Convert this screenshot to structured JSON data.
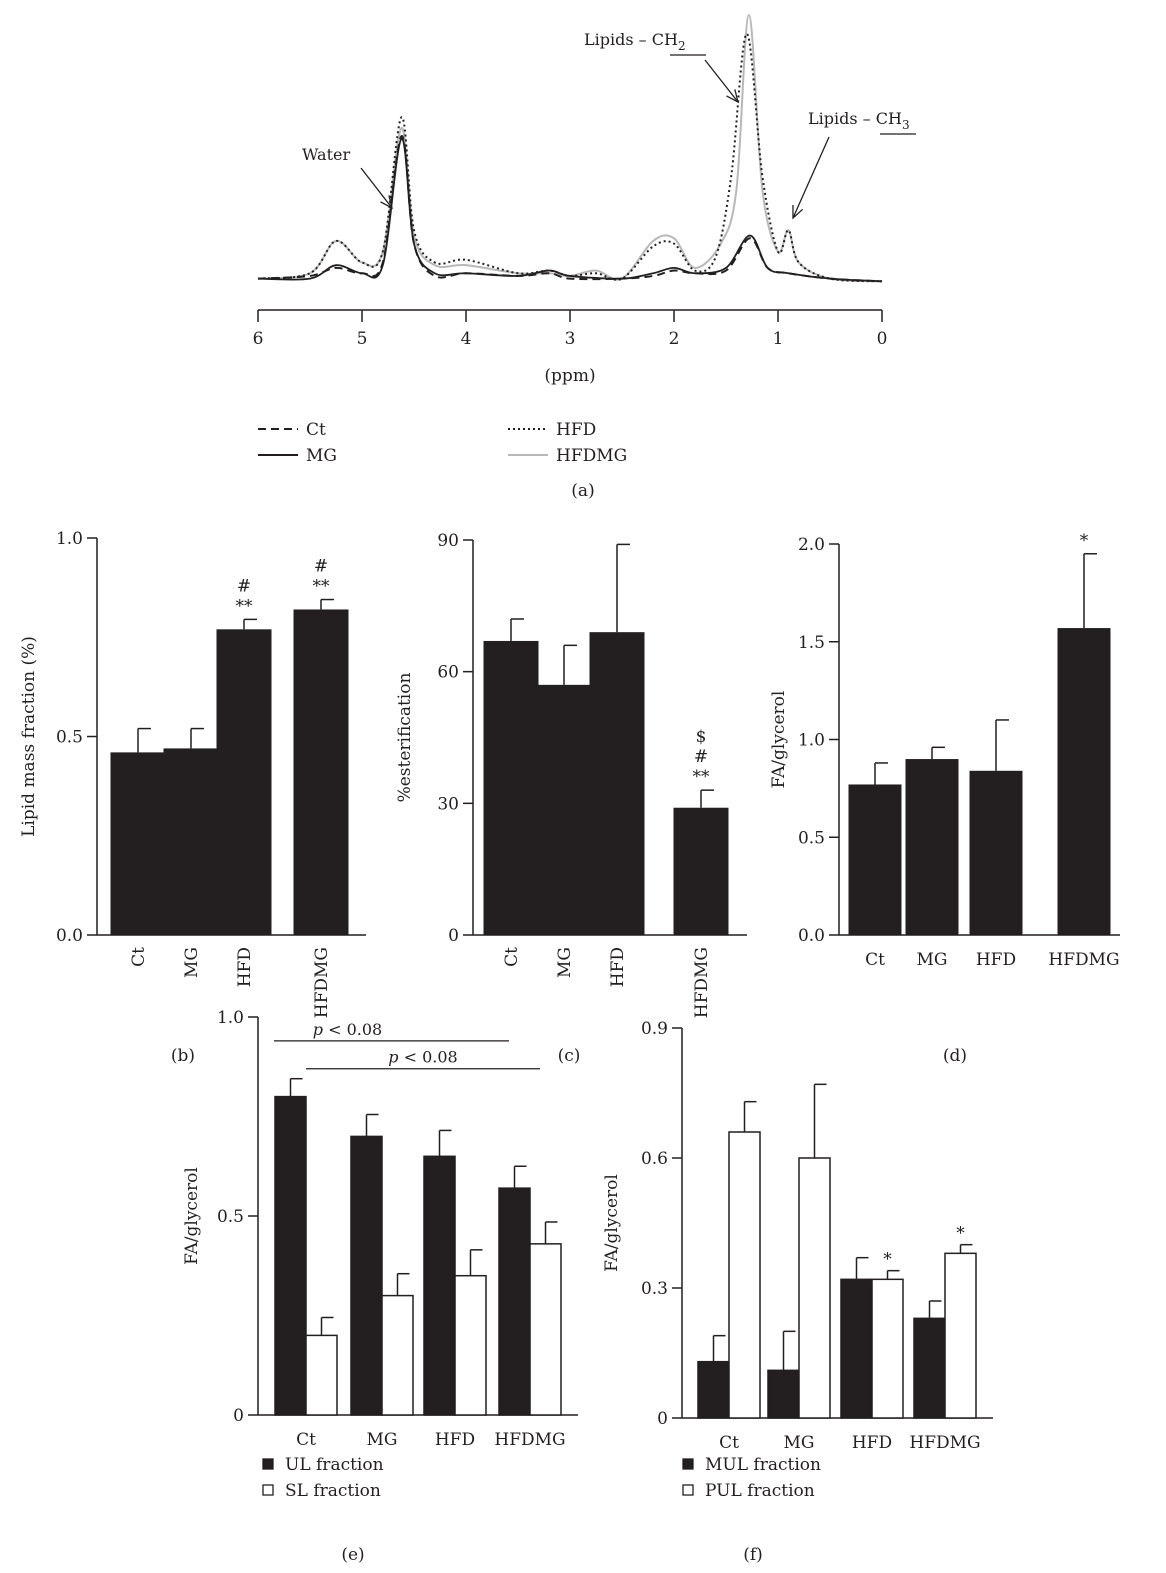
{
  "colors": {
    "dark": "#231f20",
    "light": "#b8b8b8",
    "white": "#ffffff"
  },
  "panel_labels": {
    "a": "(a)",
    "b": "(b)",
    "c": "(c)",
    "d": "(d)",
    "e": "(e)",
    "f": "(f)"
  },
  "chart_data": [
    {
      "id": "a",
      "type": "line",
      "xlabel": "(ppm)",
      "xlim": [
        6,
        0
      ],
      "x_ticks": [
        "6",
        "5",
        "4",
        "3",
        "2",
        "1",
        "0"
      ],
      "annotations": {
        "water": "Water",
        "ch2_prefix": "Lipids – ",
        "ch2_group": "CH",
        "ch2_sub": "2",
        "ch3_prefix": "Lipids – ",
        "ch3_group": "CH",
        "ch3_sub": "3"
      },
      "legend": [
        "Ct",
        "MG",
        "HFD",
        "HFDMG"
      ],
      "series": [
        {
          "name": "Ct",
          "style": "dashed",
          "color": "#231f20",
          "points": [
            [
              6,
              0.02
            ],
            [
              5.5,
              0.03
            ],
            [
              5.25,
              0.06
            ],
            [
              5.0,
              0.04
            ],
            [
              4.8,
              0.08
            ],
            [
              4.62,
              0.55
            ],
            [
              4.5,
              0.15
            ],
            [
              4.3,
              0.03
            ],
            [
              4.0,
              0.04
            ],
            [
              3.5,
              0.03
            ],
            [
              3.2,
              0.04
            ],
            [
              3.0,
              0.02
            ],
            [
              2.5,
              0.02
            ],
            [
              2.2,
              0.03
            ],
            [
              2.0,
              0.05
            ],
            [
              1.8,
              0.04
            ],
            [
              1.5,
              0.05
            ],
            [
              1.27,
              0.17
            ],
            [
              1.1,
              0.06
            ],
            [
              0.9,
              0.04
            ],
            [
              0.5,
              0.02
            ],
            [
              0,
              0.01
            ]
          ]
        },
        {
          "name": "MG",
          "style": "solid",
          "color": "#231f20",
          "points": [
            [
              6,
              0.02
            ],
            [
              5.5,
              0.02
            ],
            [
              5.25,
              0.07
            ],
            [
              5.0,
              0.04
            ],
            [
              4.8,
              0.07
            ],
            [
              4.62,
              0.54
            ],
            [
              4.5,
              0.15
            ],
            [
              4.3,
              0.04
            ],
            [
              4.0,
              0.04
            ],
            [
              3.5,
              0.03
            ],
            [
              3.2,
              0.05
            ],
            [
              3.0,
              0.03
            ],
            [
              2.5,
              0.02
            ],
            [
              2.2,
              0.04
            ],
            [
              2.0,
              0.06
            ],
            [
              1.8,
              0.04
            ],
            [
              1.5,
              0.06
            ],
            [
              1.27,
              0.18
            ],
            [
              1.1,
              0.06
            ],
            [
              0.9,
              0.04
            ],
            [
              0.5,
              0.02
            ],
            [
              0,
              0.01
            ]
          ]
        },
        {
          "name": "HFD",
          "style": "dotted",
          "color": "#231f20",
          "points": [
            [
              6,
              0.02
            ],
            [
              5.5,
              0.04
            ],
            [
              5.25,
              0.16
            ],
            [
              5.0,
              0.08
            ],
            [
              4.8,
              0.12
            ],
            [
              4.62,
              0.62
            ],
            [
              4.5,
              0.2
            ],
            [
              4.3,
              0.08
            ],
            [
              4.0,
              0.09
            ],
            [
              3.5,
              0.04
            ],
            [
              3.2,
              0.05
            ],
            [
              3.0,
              0.03
            ],
            [
              2.75,
              0.04
            ],
            [
              2.5,
              0.02
            ],
            [
              2.2,
              0.14
            ],
            [
              2.0,
              0.15
            ],
            [
              1.8,
              0.05
            ],
            [
              1.6,
              0.1
            ],
            [
              1.45,
              0.4
            ],
            [
              1.3,
              0.93
            ],
            [
              1.15,
              0.4
            ],
            [
              1.0,
              0.12
            ],
            [
              0.9,
              0.2
            ],
            [
              0.8,
              0.08
            ],
            [
              0.5,
              0.02
            ],
            [
              0,
              0.01
            ]
          ]
        },
        {
          "name": "HFDMG",
          "style": "solid",
          "color": "#b8b8b8",
          "points": [
            [
              6,
              0.02
            ],
            [
              5.5,
              0.04
            ],
            [
              5.25,
              0.16
            ],
            [
              5.0,
              0.08
            ],
            [
              4.8,
              0.12
            ],
            [
              4.62,
              0.58
            ],
            [
              4.5,
              0.18
            ],
            [
              4.3,
              0.07
            ],
            [
              4.0,
              0.07
            ],
            [
              3.5,
              0.04
            ],
            [
              3.2,
              0.04
            ],
            [
              3.0,
              0.03
            ],
            [
              2.75,
              0.05
            ],
            [
              2.5,
              0.02
            ],
            [
              2.2,
              0.16
            ],
            [
              2.0,
              0.17
            ],
            [
              1.8,
              0.06
            ],
            [
              1.55,
              0.15
            ],
            [
              1.4,
              0.35
            ],
            [
              1.28,
              1.0
            ],
            [
              1.15,
              0.35
            ],
            [
              1.0,
              0.12
            ],
            [
              0.9,
              0.2
            ],
            [
              0.8,
              0.08
            ],
            [
              0.5,
              0.02
            ],
            [
              0,
              0.01
            ]
          ]
        }
      ]
    },
    {
      "id": "b",
      "type": "bar",
      "ylabel": "Lipid mass fraction (%)",
      "ylim": [
        0,
        1.0
      ],
      "y_ticks": [
        "0.0",
        "0.5",
        "1.0"
      ],
      "categories": [
        "Ct",
        "MG",
        "HFD",
        "HFDMG"
      ],
      "values": [
        0.46,
        0.47,
        0.77,
        0.82
      ],
      "errors": [
        0.06,
        0.05,
        0.025,
        0.025
      ],
      "sig": [
        [],
        [],
        [
          "#",
          "**"
        ],
        [
          "#",
          "**"
        ]
      ]
    },
    {
      "id": "c",
      "type": "bar",
      "ylabel": "%esterification",
      "ylim": [
        0,
        90
      ],
      "y_ticks": [
        "0",
        "30",
        "60",
        "90"
      ],
      "categories": [
        "Ct",
        "MG",
        "HFD",
        "HFDMG"
      ],
      "values": [
        67,
        57,
        69,
        29
      ],
      "errors": [
        5,
        9,
        20,
        4
      ],
      "sig": [
        [],
        [],
        [],
        [
          "$",
          "#",
          "**"
        ]
      ]
    },
    {
      "id": "d",
      "type": "bar",
      "ylabel": "FA/glycerol",
      "ylim": [
        0,
        2.0
      ],
      "y_ticks": [
        "0.0",
        "0.5",
        "1.0",
        "1.5",
        "2.0"
      ],
      "categories": [
        "Ct",
        "MG",
        "HFD",
        "HFDMG"
      ],
      "values": [
        0.77,
        0.9,
        0.84,
        1.57
      ],
      "errors": [
        0.11,
        0.06,
        0.26,
        0.38
      ],
      "sig": [
        [],
        [],
        [],
        [
          "*"
        ]
      ]
    },
    {
      "id": "e",
      "type": "bar",
      "ylabel": "FA/glycerol",
      "ylim": [
        0,
        1.0
      ],
      "y_ticks": [
        "0",
        "0.5",
        "1.0"
      ],
      "categories": [
        "Ct",
        "MG",
        "HFD",
        "HFDMG"
      ],
      "series": [
        {
          "name": "UL fraction",
          "values": [
            0.8,
            0.7,
            0.65,
            0.57
          ],
          "errors": [
            0.045,
            0.055,
            0.065,
            0.055
          ]
        },
        {
          "name": "SL fraction",
          "values": [
            0.2,
            0.3,
            0.35,
            0.43
          ],
          "errors": [
            0.045,
            0.055,
            0.065,
            0.055
          ]
        }
      ],
      "brackets": [
        {
          "label": "p < 0.08",
          "p": "p",
          "rest": " < 0.08",
          "y": 0.94,
          "from": 0,
          "to": 3
        },
        {
          "label": "p < 0.08",
          "p": "p",
          "rest": " < 0.08",
          "y": 0.87,
          "from": 0,
          "to": 3
        }
      ]
    },
    {
      "id": "f",
      "type": "bar",
      "ylabel": "FA/glycerol",
      "ylim": [
        0,
        0.9
      ],
      "y_ticks": [
        "0",
        "0.3",
        "0.6",
        "0.9"
      ],
      "categories": [
        "Ct",
        "MG",
        "HFD",
        "HFDMG"
      ],
      "series": [
        {
          "name": "MUL fraction",
          "values": [
            0.13,
            0.11,
            0.32,
            0.23
          ],
          "errors": [
            0.06,
            0.09,
            0.05,
            0.04
          ],
          "sig": [
            [],
            [],
            [],
            []
          ]
        },
        {
          "name": "PUL fraction",
          "values": [
            0.66,
            0.6,
            0.32,
            0.38
          ],
          "errors": [
            0.07,
            0.17,
            0.02,
            0.02
          ],
          "sig": [
            [],
            [],
            [
              "*"
            ],
            [
              "*"
            ]
          ]
        }
      ]
    }
  ]
}
